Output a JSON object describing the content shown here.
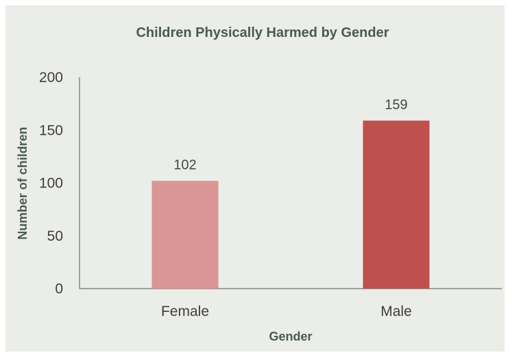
{
  "chart_data": {
    "type": "bar",
    "title": "Children Physically Harmed by Gender",
    "xlabel": "Gender",
    "ylabel": "Number of children",
    "categories": [
      "Female",
      "Male"
    ],
    "values": [
      102,
      159
    ],
    "data_labels": [
      "102",
      "159"
    ],
    "ylim": [
      0,
      200
    ],
    "yticks": [
      "0",
      "50",
      "100",
      "150",
      "200"
    ],
    "grid": false,
    "legend": "none",
    "colors": [
      "#d99694",
      "#c0504d"
    ],
    "background": "#ebede9"
  }
}
